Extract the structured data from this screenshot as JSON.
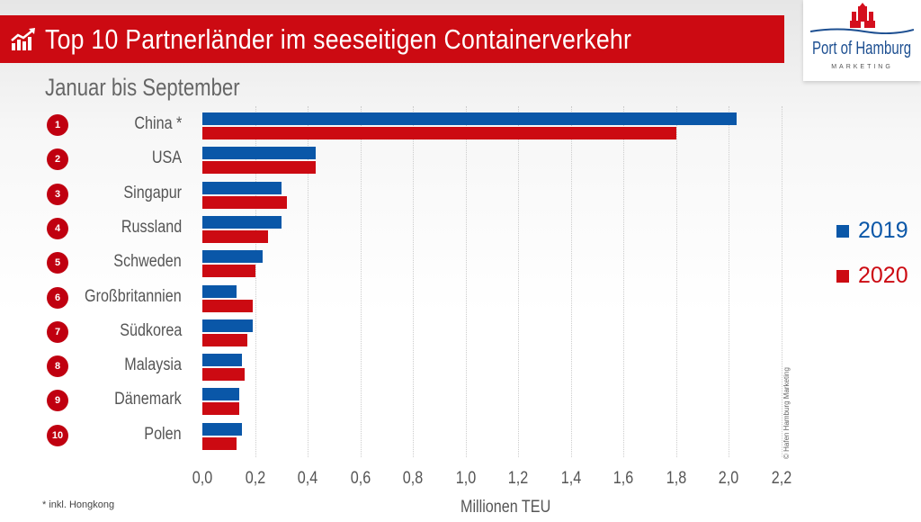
{
  "header": {
    "title": "Top 10 Partnerländer im seeseitigen Containerverkehr",
    "subtitle": "Januar bis September",
    "icon": "chart-growth-icon"
  },
  "logo": {
    "name": "Port of Hamburg",
    "tagline": "MARKETING"
  },
  "footnote": "*   inkl. Hongkong",
  "copyright": "© Hafen Hamburg Marketing",
  "colors": {
    "2019": "#0a57a8",
    "2020": "#cc0a12",
    "accent": "#cc0a12"
  },
  "chart_data": {
    "type": "bar",
    "orientation": "horizontal",
    "title": "Top 10 Partnerländer im seeseitigen Containerverkehr",
    "subtitle": "Januar bis September",
    "ranks": [
      "1",
      "2",
      "3",
      "4",
      "5",
      "6",
      "7",
      "8",
      "9",
      "10"
    ],
    "categories": [
      "China *",
      "USA",
      "Singapur",
      "Russland",
      "Schweden",
      "Großbritannien",
      "Südkorea",
      "Malaysia",
      "Dänemark",
      "Polen"
    ],
    "series": [
      {
        "name": "2019",
        "values": [
          2.03,
          0.43,
          0.3,
          0.3,
          0.23,
          0.13,
          0.19,
          0.15,
          0.14,
          0.15
        ]
      },
      {
        "name": "2020",
        "values": [
          1.8,
          0.43,
          0.32,
          0.25,
          0.2,
          0.19,
          0.17,
          0.16,
          0.14,
          0.13
        ]
      }
    ],
    "xlabel": "Millionen TEU",
    "xlim": [
      0,
      2.2
    ],
    "xticks": [
      "0,0",
      "0,2",
      "0,4",
      "0,6",
      "0,8",
      "1,0",
      "1,2",
      "1,4",
      "1,6",
      "1,8",
      "2,0",
      "2,2"
    ],
    "grid": "vertical dotted",
    "legend": "right"
  }
}
